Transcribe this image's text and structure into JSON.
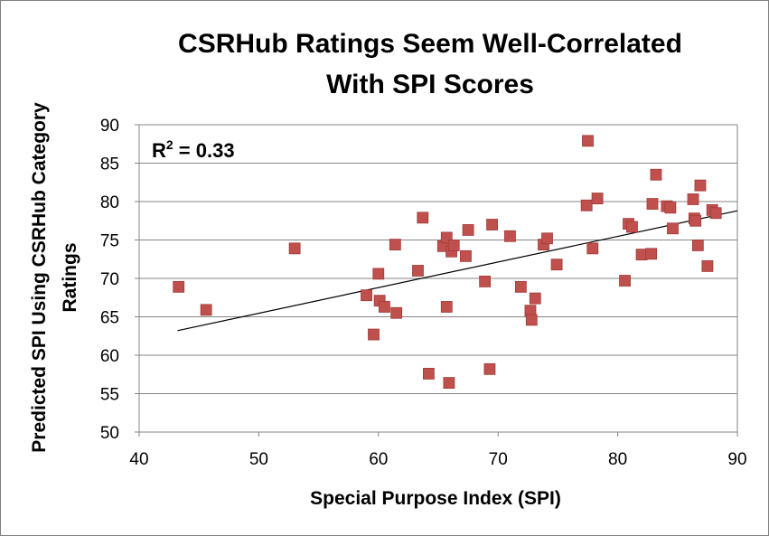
{
  "chart_data": {
    "type": "scatter",
    "title": [
      "CSRHub Ratings Seem Well-Correlated",
      "With SPI Scores"
    ],
    "xlabel": "Special Purpose Index (SPI)",
    "ylabel": [
      "Predicted SPI Using CSRHub Category",
      "Ratings"
    ],
    "xlim": [
      40,
      90
    ],
    "ylim": [
      50,
      90
    ],
    "xticks": [
      40,
      50,
      60,
      70,
      80,
      90
    ],
    "yticks": [
      50,
      55,
      60,
      65,
      70,
      75,
      80,
      85,
      90
    ],
    "grid": "horizontal",
    "annotation": {
      "prefix": "R",
      "sup": "2",
      "suffix": " = 0.33"
    },
    "marker_color": "#c0504d",
    "marker_edge_color": "#a03a37",
    "trendline": {
      "x": [
        43.2,
        90.0
      ],
      "y": [
        63.2,
        78.8
      ],
      "color": "#000000"
    },
    "points": [
      {
        "x": 43.3,
        "y": 68.9
      },
      {
        "x": 45.6,
        "y": 65.9
      },
      {
        "x": 53.0,
        "y": 73.9
      },
      {
        "x": 59.0,
        "y": 67.8
      },
      {
        "x": 59.6,
        "y": 62.7
      },
      {
        "x": 60.0,
        "y": 70.6
      },
      {
        "x": 60.1,
        "y": 67.1
      },
      {
        "x": 60.5,
        "y": 66.3
      },
      {
        "x": 61.4,
        "y": 74.4
      },
      {
        "x": 61.5,
        "y": 65.5
      },
      {
        "x": 63.3,
        "y": 71.0
      },
      {
        "x": 63.7,
        "y": 77.9
      },
      {
        "x": 64.2,
        "y": 57.6
      },
      {
        "x": 65.4,
        "y": 74.2
      },
      {
        "x": 65.7,
        "y": 75.3
      },
      {
        "x": 65.7,
        "y": 66.3
      },
      {
        "x": 65.9,
        "y": 56.4
      },
      {
        "x": 66.1,
        "y": 73.5
      },
      {
        "x": 66.3,
        "y": 74.3
      },
      {
        "x": 67.3,
        "y": 72.9
      },
      {
        "x": 67.5,
        "y": 76.3
      },
      {
        "x": 68.9,
        "y": 69.6
      },
      {
        "x": 69.3,
        "y": 58.2
      },
      {
        "x": 69.5,
        "y": 77.0
      },
      {
        "x": 71.0,
        "y": 75.5
      },
      {
        "x": 71.9,
        "y": 68.9
      },
      {
        "x": 72.7,
        "y": 65.8
      },
      {
        "x": 72.8,
        "y": 64.6
      },
      {
        "x": 73.1,
        "y": 67.4
      },
      {
        "x": 73.8,
        "y": 74.4
      },
      {
        "x": 74.1,
        "y": 75.2
      },
      {
        "x": 74.9,
        "y": 71.8
      },
      {
        "x": 77.4,
        "y": 79.5
      },
      {
        "x": 77.5,
        "y": 87.9
      },
      {
        "x": 77.9,
        "y": 73.9
      },
      {
        "x": 78.3,
        "y": 80.4
      },
      {
        "x": 80.6,
        "y": 69.7
      },
      {
        "x": 80.9,
        "y": 77.1
      },
      {
        "x": 81.2,
        "y": 76.7
      },
      {
        "x": 82.0,
        "y": 73.1
      },
      {
        "x": 82.8,
        "y": 73.2
      },
      {
        "x": 82.9,
        "y": 79.7
      },
      {
        "x": 83.2,
        "y": 83.5
      },
      {
        "x": 84.1,
        "y": 79.4
      },
      {
        "x": 84.4,
        "y": 79.2
      },
      {
        "x": 84.6,
        "y": 76.5
      },
      {
        "x": 86.3,
        "y": 80.3
      },
      {
        "x": 86.4,
        "y": 77.8
      },
      {
        "x": 86.5,
        "y": 77.5
      },
      {
        "x": 86.7,
        "y": 74.3
      },
      {
        "x": 86.9,
        "y": 82.1
      },
      {
        "x": 87.5,
        "y": 71.6
      },
      {
        "x": 87.9,
        "y": 78.9
      },
      {
        "x": 88.2,
        "y": 78.5
      }
    ]
  }
}
